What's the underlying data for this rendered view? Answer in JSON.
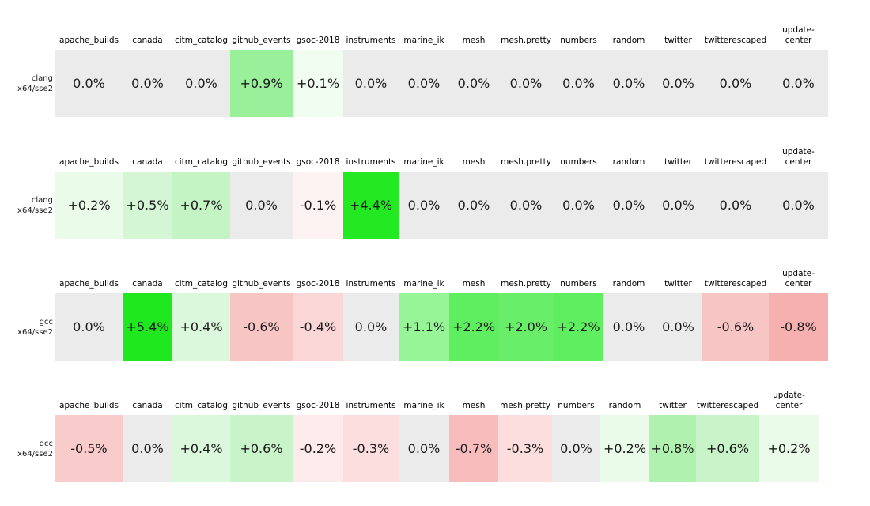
{
  "colors": {
    "zero_cell": "#ebebeb",
    "max_positive": "#22e922",
    "max_negative": "#f6b0b0",
    "text": "#1a1a1a"
  },
  "chart_data": {
    "type": "heatmap",
    "title": "",
    "legend_position": "none",
    "grid": false,
    "columns": [
      "apache_builds",
      "canada",
      "citm_catalog",
      "github_events",
      "gsoc-2018",
      "instruments",
      "marine_ik",
      "mesh",
      "mesh.pretty",
      "numbers",
      "random",
      "twitter",
      "twitterescaped",
      "update-center"
    ],
    "value_unit": "percent",
    "tables": [
      {
        "row_label": [
          "clang",
          "x64/sse2"
        ],
        "values": [
          0.0,
          0.0,
          0.0,
          0.9,
          0.1,
          0.0,
          0.0,
          0.0,
          0.0,
          0.0,
          0.0,
          0.0,
          0.0,
          0.0
        ],
        "display": [
          "0.0%",
          "0.0%",
          "0.0%",
          "+0.9%",
          "+0.1%",
          "0.0%",
          "0.0%",
          "0.0%",
          "0.0%",
          "0.0%",
          "0.0%",
          "0.0%",
          "0.0%",
          "0.0%"
        ],
        "colors": [
          "#ebebeb",
          "#ebebeb",
          "#ebebeb",
          "#9af09a",
          "#f2fdf2",
          "#ebebeb",
          "#ebebeb",
          "#ebebeb",
          "#ebebeb",
          "#ebebeb",
          "#ebebeb",
          "#ebebeb",
          "#ebebeb",
          "#ebebeb"
        ]
      },
      {
        "row_label": [
          "clang",
          "x64/sse2"
        ],
        "values": [
          0.2,
          0.5,
          0.7,
          0.0,
          -0.1,
          4.4,
          0.0,
          0.0,
          0.0,
          0.0,
          0.0,
          0.0,
          0.0,
          0.0
        ],
        "display": [
          "+0.2%",
          "+0.5%",
          "+0.7%",
          "0.0%",
          "-0.1%",
          "+4.4%",
          "0.0%",
          "0.0%",
          "0.0%",
          "0.0%",
          "0.0%",
          "0.0%",
          "0.0%",
          "0.0%"
        ],
        "colors": [
          "#eafbea",
          "#d4f6d4",
          "#c4f3c4",
          "#ebebeb",
          "#fdf2f2",
          "#22e922",
          "#ebebeb",
          "#ebebeb",
          "#ebebeb",
          "#ebebeb",
          "#ebebeb",
          "#ebebeb",
          "#ebebeb",
          "#ebebeb"
        ]
      },
      {
        "row_label": [
          "gcc",
          "x64/sse2"
        ],
        "values": [
          0.0,
          5.4,
          0.4,
          -0.6,
          -0.4,
          0.0,
          1.1,
          2.2,
          2.0,
          2.2,
          0.0,
          0.0,
          -0.6,
          -0.8
        ],
        "display": [
          "0.0%",
          "+5.4%",
          "+0.4%",
          "-0.6%",
          "-0.4%",
          "0.0%",
          "+1.1%",
          "+2.2%",
          "+2.0%",
          "+2.2%",
          "0.0%",
          "0.0%",
          "-0.6%",
          "-0.8%"
        ],
        "colors": [
          "#ebebeb",
          "#1fe81f",
          "#dcf8dc",
          "#f8c5c5",
          "#fad6d6",
          "#ebebeb",
          "#97f597",
          "#5fee5f",
          "#68ee68",
          "#5fee5f",
          "#ebebeb",
          "#ebebeb",
          "#f8c5c5",
          "#f6b0b0"
        ]
      },
      {
        "row_label": [
          "gcc",
          "x64/sse2"
        ],
        "values": [
          -0.5,
          0.0,
          0.4,
          0.6,
          -0.2,
          -0.3,
          0.0,
          -0.7,
          -0.3,
          0.0,
          0.2,
          0.8,
          0.6,
          0.2
        ],
        "display": [
          "-0.5%",
          "0.0%",
          "+0.4%",
          "+0.6%",
          "-0.2%",
          "-0.3%",
          "0.0%",
          "-0.7%",
          "-0.3%",
          "0.0%",
          "+0.2%",
          "+0.8%",
          "+0.6%",
          "+0.2%"
        ],
        "colors": [
          "#f9cbcb",
          "#ebebeb",
          "#dcf8dc",
          "#c9f4c9",
          "#fdeaea",
          "#fcdede",
          "#ebebeb",
          "#f8bcbc",
          "#fcdede",
          "#ebebeb",
          "#eafbea",
          "#b0f1b0",
          "#c9f4c9",
          "#eafbea"
        ]
      }
    ]
  }
}
